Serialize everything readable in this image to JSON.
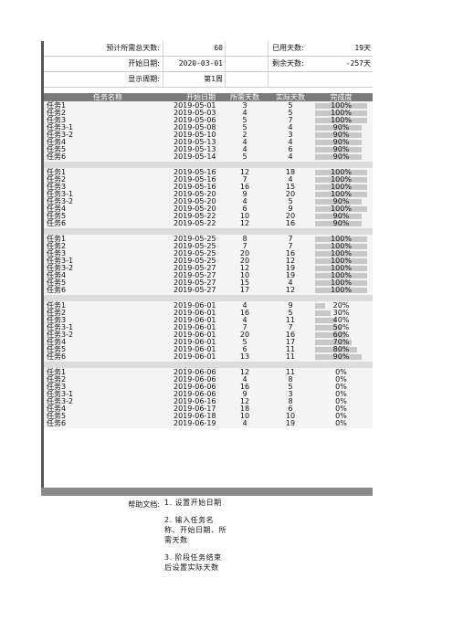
{
  "summary": {
    "total_days_label": "预计所需总天数:",
    "total_days_value": "60",
    "start_date_label": "开始日期:",
    "start_date_value": "2020-03-01",
    "period_label": "显示周期:",
    "period_value": "第1周",
    "used_days_label": "已用天数:",
    "used_days_value": "19天",
    "remaining_days_label": "剩余天数:",
    "remaining_days_value": "-257天"
  },
  "table": {
    "headers": [
      "任务名称",
      "开始日期",
      "所需天数",
      "实际天数",
      "完成度"
    ],
    "groups": [
      [
        {
          "name": "任务1",
          "date": "2019-05-01",
          "need": "3",
          "actual": "5",
          "pct": "100%",
          "fill": 1.0
        },
        {
          "name": "任务2",
          "date": "2019-05-03",
          "need": "4",
          "actual": "5",
          "pct": "100%",
          "fill": 1.0
        },
        {
          "name": "任务3",
          "date": "2019-05-06",
          "need": "5",
          "actual": "7",
          "pct": "100%",
          "fill": 1.0
        },
        {
          "name": "任务3-1",
          "date": "2019-05-08",
          "need": "5",
          "actual": "4",
          "pct": "90%",
          "fill": 0.9
        },
        {
          "name": "任务3-2",
          "date": "2019-05-10",
          "need": "2",
          "actual": "3",
          "pct": "90%",
          "fill": 0.9
        },
        {
          "name": "任务4",
          "date": "2019-05-13",
          "need": "4",
          "actual": "4",
          "pct": "90%",
          "fill": 0.9
        },
        {
          "name": "任务5",
          "date": "2019-05-13",
          "need": "4",
          "actual": "6",
          "pct": "90%",
          "fill": 0.9
        },
        {
          "name": "任务6",
          "date": "2019-05-14",
          "need": "5",
          "actual": "4",
          "pct": "90%",
          "fill": 0.9
        }
      ],
      [
        {
          "name": "任务1",
          "date": "2019-05-16",
          "need": "12",
          "actual": "18",
          "pct": "100%",
          "fill": 1.0
        },
        {
          "name": "任务2",
          "date": "2019-05-16",
          "need": "7",
          "actual": "4",
          "pct": "100%",
          "fill": 1.0
        },
        {
          "name": "任务3",
          "date": "2019-05-16",
          "need": "16",
          "actual": "15",
          "pct": "100%",
          "fill": 1.0
        },
        {
          "name": "任务3-1",
          "date": "2019-05-20",
          "need": "9",
          "actual": "20",
          "pct": "100%",
          "fill": 1.0
        },
        {
          "name": "任务3-2",
          "date": "2019-05-20",
          "need": "4",
          "actual": "5",
          "pct": "90%",
          "fill": 0.9
        },
        {
          "name": "任务4",
          "date": "2019-05-20",
          "need": "6",
          "actual": "9",
          "pct": "100%",
          "fill": 1.0
        },
        {
          "name": "任务5",
          "date": "2019-05-22",
          "need": "10",
          "actual": "20",
          "pct": "90%",
          "fill": 0.9
        },
        {
          "name": "任务6",
          "date": "2019-05-22",
          "need": "12",
          "actual": "16",
          "pct": "90%",
          "fill": 0.9
        }
      ],
      [
        {
          "name": "任务1",
          "date": "2019-05-25",
          "need": "8",
          "actual": "7",
          "pct": "100%",
          "fill": 1.0
        },
        {
          "name": "任务2",
          "date": "2019-05-25",
          "need": "7",
          "actual": "7",
          "pct": "100%",
          "fill": 1.0
        },
        {
          "name": "任务3",
          "date": "2019-05-25",
          "need": "20",
          "actual": "16",
          "pct": "100%",
          "fill": 1.0
        },
        {
          "name": "任务3-1",
          "date": "2019-05-25",
          "need": "20",
          "actual": "12",
          "pct": "100%",
          "fill": 1.0
        },
        {
          "name": "任务3-2",
          "date": "2019-05-27",
          "need": "12",
          "actual": "19",
          "pct": "100%",
          "fill": 1.0
        },
        {
          "name": "任务4",
          "date": "2019-05-27",
          "need": "10",
          "actual": "19",
          "pct": "100%",
          "fill": 1.0
        },
        {
          "name": "任务5",
          "date": "2019-05-27",
          "need": "15",
          "actual": "4",
          "pct": "100%",
          "fill": 1.0
        },
        {
          "name": "任务6",
          "date": "2019-05-27",
          "need": "17",
          "actual": "12",
          "pct": "100%",
          "fill": 1.0
        }
      ],
      [
        {
          "name": "任务1",
          "date": "2019-06-01",
          "need": "4",
          "actual": "9",
          "pct": "20%",
          "fill": 0.2
        },
        {
          "name": "任务2",
          "date": "2019-06-01",
          "need": "16",
          "actual": "5",
          "pct": "30%",
          "fill": 0.3
        },
        {
          "name": "任务3",
          "date": "2019-06-01",
          "need": "4",
          "actual": "11",
          "pct": "40%",
          "fill": 0.4
        },
        {
          "name": "任务3-1",
          "date": "2019-06-01",
          "need": "7",
          "actual": "7",
          "pct": "50%",
          "fill": 0.5
        },
        {
          "name": "任务3-2",
          "date": "2019-06-01",
          "need": "20",
          "actual": "16",
          "pct": "60%",
          "fill": 0.6
        },
        {
          "name": "任务4",
          "date": "2019-06-01",
          "need": "5",
          "actual": "17",
          "pct": "70%",
          "fill": 0.7
        },
        {
          "name": "任务5",
          "date": "2019-06-01",
          "need": "6",
          "actual": "11",
          "pct": "80%",
          "fill": 0.8
        },
        {
          "name": "任务6",
          "date": "2019-06-01",
          "need": "13",
          "actual": "11",
          "pct": "90%",
          "fill": 0.9
        }
      ],
      [
        {
          "name": "任务1",
          "date": "2019-06-06",
          "need": "12",
          "actual": "11",
          "pct": "0%",
          "fill": 0
        },
        {
          "name": "任务2",
          "date": "2019-06-06",
          "need": "4",
          "actual": "8",
          "pct": "0%",
          "fill": 0
        },
        {
          "name": "任务3",
          "date": "2019-06-06",
          "need": "16",
          "actual": "5",
          "pct": "0%",
          "fill": 0
        },
        {
          "name": "任务3-1",
          "date": "2019-06-06",
          "need": "9",
          "actual": "3",
          "pct": "0%",
          "fill": 0
        },
        {
          "name": "任务3-2",
          "date": "2019-06-16",
          "need": "12",
          "actual": "8",
          "pct": "0%",
          "fill": 0
        },
        {
          "name": "任务4",
          "date": "2019-06-17",
          "need": "18",
          "actual": "6",
          "pct": "0%",
          "fill": 0
        },
        {
          "name": "任务5",
          "date": "2019-06-18",
          "need": "10",
          "actual": "10",
          "pct": "0%",
          "fill": 0
        },
        {
          "name": "任务6",
          "date": "2019-06-19",
          "need": "4",
          "actual": "19",
          "pct": "0%",
          "fill": 0
        }
      ]
    ]
  },
  "help": {
    "label": "帮助文档:",
    "items": [
      "1. 设置开始日期",
      "2. 输入任务名称、开始日期、所需天数",
      "3. 阶段任务结束后设置实际天数"
    ]
  },
  "colors": {
    "header_bg": "#7a7a7a",
    "progress_fill": "#c8c8c8",
    "group_bg": "#f4f4f4",
    "separator": "#dcdcdc"
  }
}
